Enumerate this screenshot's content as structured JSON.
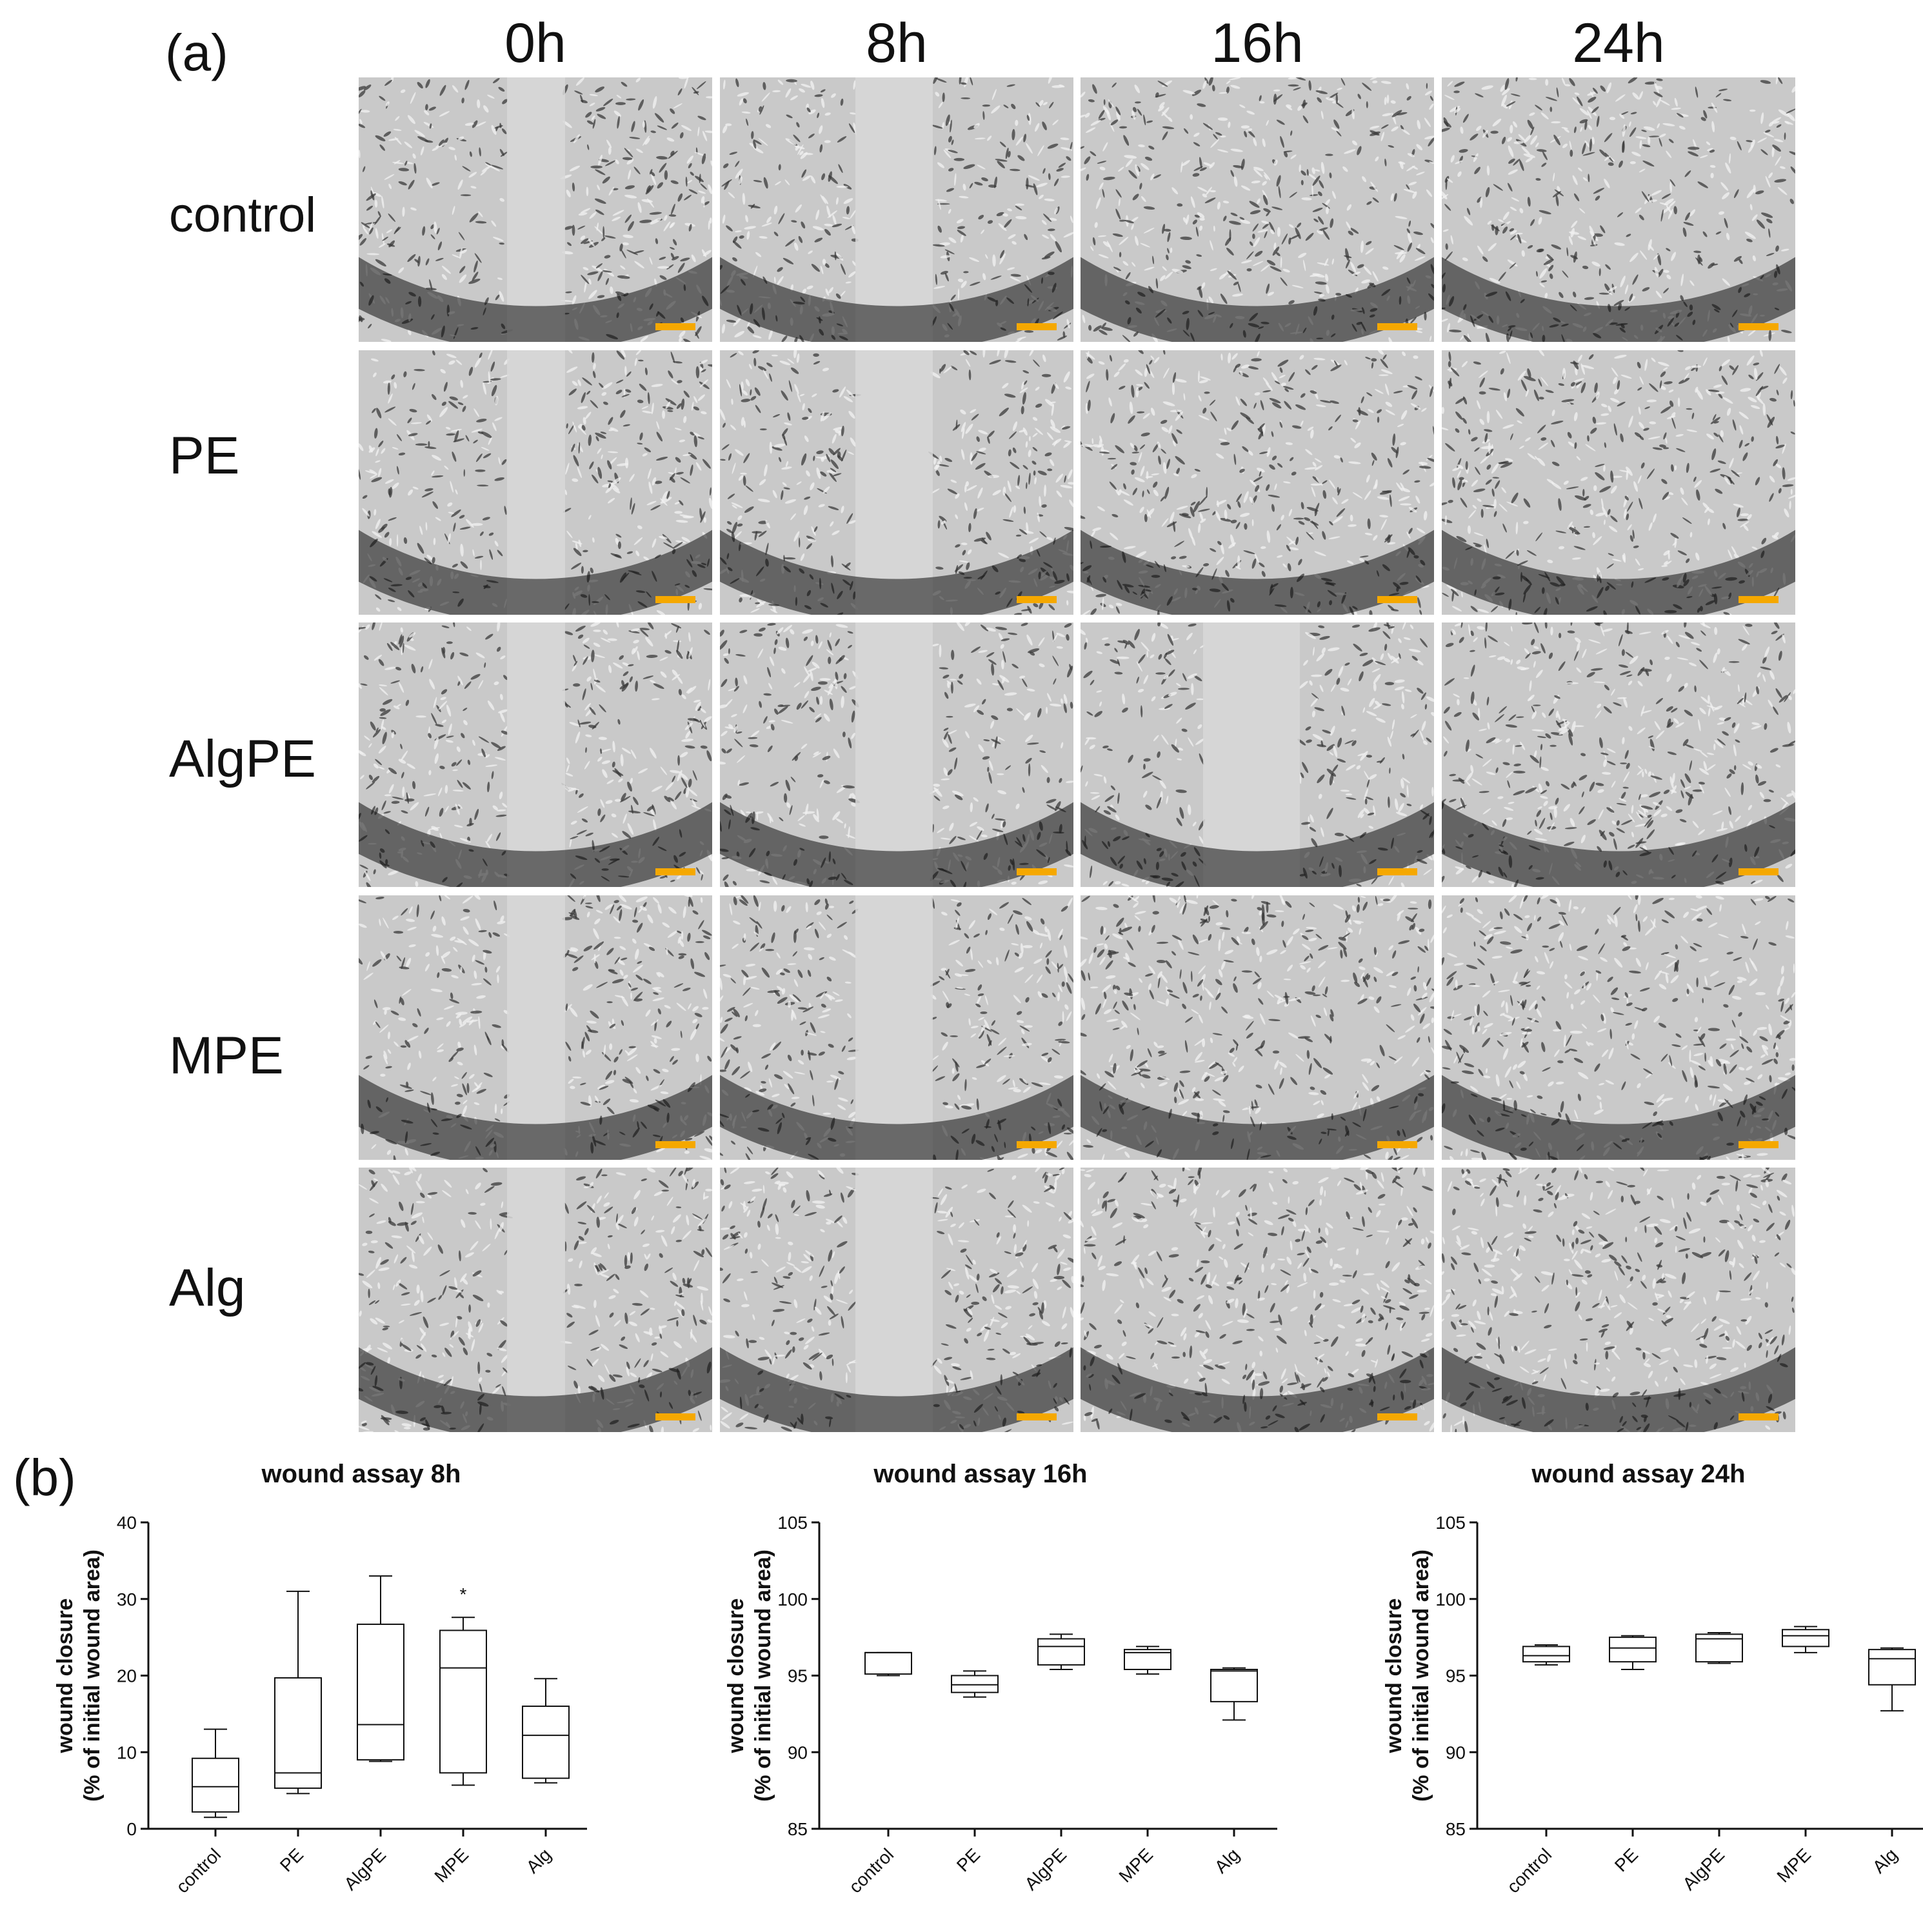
{
  "panel_a": {
    "label": "(a)",
    "columns": [
      "0h",
      "8h",
      "16h",
      "24h"
    ],
    "rows": [
      "control",
      "PE",
      "AlgPE",
      "MPE",
      "Alg"
    ],
    "scalebar_color": "#f5a800",
    "wound_gap_visible": [
      [
        true,
        true,
        false,
        false
      ],
      [
        true,
        true,
        false,
        false
      ],
      [
        true,
        true,
        true,
        false
      ],
      [
        true,
        true,
        false,
        false
      ],
      [
        true,
        true,
        false,
        false
      ]
    ]
  },
  "panel_b": {
    "label": "(b)"
  },
  "chart_data": [
    {
      "type": "box",
      "title": "wound assay 8h",
      "ylabel_line1": "wound closure",
      "ylabel_line2": "(% of initial wound area)",
      "categories": [
        "control",
        "PE",
        "AlgPE",
        "MPE",
        "Alg"
      ],
      "ylim": [
        0,
        40
      ],
      "yticks": [
        0,
        10,
        20,
        30,
        40
      ],
      "boxes": [
        {
          "min": 1.5,
          "q1": 2.2,
          "median": 5.5,
          "q3": 9.2,
          "max": 13.0
        },
        {
          "min": 4.6,
          "q1": 5.3,
          "median": 7.3,
          "q3": 19.7,
          "max": 31.0
        },
        {
          "min": 8.8,
          "q1": 9.0,
          "median": 13.6,
          "q3": 26.7,
          "max": 33.0
        },
        {
          "min": 5.7,
          "q1": 7.3,
          "median": 21.0,
          "q3": 25.9,
          "max": 27.6
        },
        {
          "min": 6.0,
          "q1": 6.6,
          "median": 12.2,
          "q3": 16.0,
          "max": 19.6
        }
      ],
      "annotations": [
        {
          "category": "MPE",
          "text": "*",
          "y": 31.0
        }
      ]
    },
    {
      "type": "box",
      "title": "wound assay 16h",
      "ylabel_line1": "wound closure",
      "ylabel_line2": "(% of initial wound area)",
      "categories": [
        "control",
        "PE",
        "AlgPE",
        "MPE",
        "Alg"
      ],
      "ylim": [
        85,
        105
      ],
      "yticks": [
        85,
        90,
        95,
        100,
        105
      ],
      "boxes": [
        {
          "min": 95.0,
          "q1": 95.1,
          "median": 96.5,
          "q3": 96.5,
          "max": 96.5
        },
        {
          "min": 93.6,
          "q1": 93.9,
          "median": 94.4,
          "q3": 95.0,
          "max": 95.3
        },
        {
          "min": 95.4,
          "q1": 95.7,
          "median": 96.9,
          "q3": 97.4,
          "max": 97.7
        },
        {
          "min": 95.1,
          "q1": 95.4,
          "median": 96.5,
          "q3": 96.7,
          "max": 96.9
        },
        {
          "min": 92.1,
          "q1": 93.3,
          "median": 95.3,
          "q3": 95.4,
          "max": 95.5
        }
      ],
      "annotations": []
    },
    {
      "type": "box",
      "title": "wound assay 24h",
      "ylabel_line1": "wound closure",
      "ylabel_line2": "(% of initial wound area)",
      "categories": [
        "control",
        "PE",
        "AlgPE",
        "MPE",
        "Alg"
      ],
      "ylim": [
        85,
        105
      ],
      "yticks": [
        85,
        90,
        95,
        100,
        105
      ],
      "boxes": [
        {
          "min": 95.7,
          "q1": 95.9,
          "median": 96.3,
          "q3": 96.9,
          "max": 97.0
        },
        {
          "min": 95.4,
          "q1": 95.9,
          "median": 96.8,
          "q3": 97.5,
          "max": 97.6
        },
        {
          "min": 95.8,
          "q1": 95.9,
          "median": 97.4,
          "q3": 97.7,
          "max": 97.8
        },
        {
          "min": 96.5,
          "q1": 96.9,
          "median": 97.6,
          "q3": 98.0,
          "max": 98.2
        },
        {
          "min": 92.7,
          "q1": 94.4,
          "median": 96.1,
          "q3": 96.7,
          "max": 96.8
        }
      ],
      "annotations": []
    }
  ]
}
